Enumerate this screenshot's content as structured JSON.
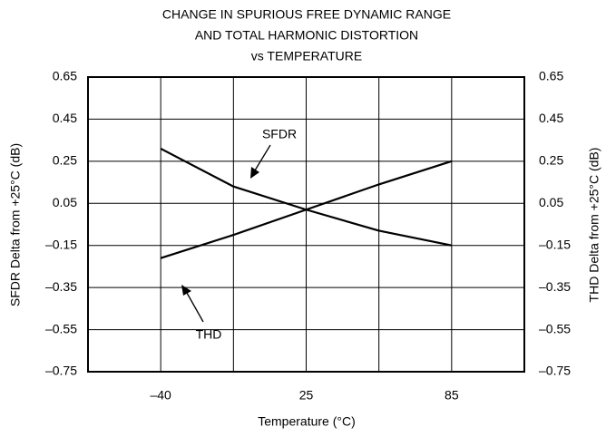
{
  "chart_data": {
    "type": "line",
    "title": [
      "CHANGE IN SPURIOUS FREE DYNAMIC RANGE",
      "AND TOTAL HARMONIC DISTORTION",
      "vs TEMPERATURE"
    ],
    "x_label": "Temperature (°C)",
    "y_label": "SFDR Delta from +25°C (dB)",
    "y2_label": "THD Delta from +25°C (dB)",
    "categories": [
      "–40",
      null,
      "25",
      null,
      "85"
    ],
    "series": [
      {
        "name": "SFDR",
        "color": "#000000",
        "values": [
          0.31,
          0.13,
          0.02,
          -0.08,
          -0.15
        ]
      },
      {
        "name": "THD",
        "color": "#000000",
        "axis": "y2",
        "values": [
          -0.21,
          -0.1,
          0.02,
          0.14,
          0.25
        ]
      }
    ],
    "ylim": [
      -0.75,
      0.65
    ],
    "yticks": [
      {
        "value": -0.75,
        "label": "–0.75"
      },
      {
        "value": -0.55,
        "label": "–0.55"
      },
      {
        "value": -0.35,
        "label": "–0.35"
      },
      {
        "value": -0.15,
        "label": "–0.15"
      },
      0.05,
      0.25,
      0.45,
      0.65
    ],
    "y2lim": [
      -0.75,
      0.65
    ],
    "y2ticks": [
      {
        "value": -0.75,
        "label": "–0.75"
      },
      {
        "value": -0.55,
        "label": "–0.55"
      },
      {
        "value": -0.35,
        "label": "–0.35"
      },
      {
        "value": -0.15,
        "label": "–0.15"
      },
      0.05,
      0.25,
      0.45,
      0.65
    ],
    "grid": true,
    "annotations": [
      "SFDR",
      "THD"
    ]
  }
}
